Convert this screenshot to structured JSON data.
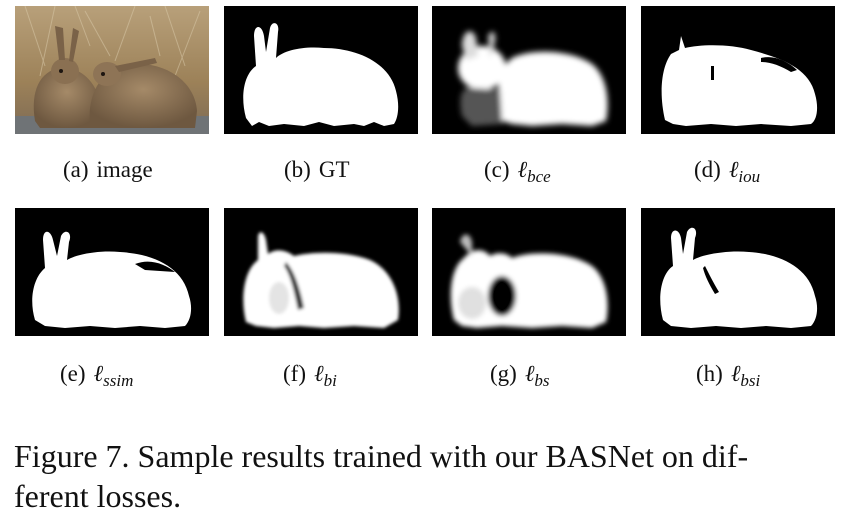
{
  "panels": [
    {
      "id": "a",
      "label": "(a)",
      "text": "image",
      "symbol": "",
      "subscript": ""
    },
    {
      "id": "b",
      "label": "(b)",
      "text": "GT",
      "symbol": "",
      "subscript": ""
    },
    {
      "id": "c",
      "label": "(c)",
      "text": "",
      "symbol": "ℓ",
      "subscript": "bce"
    },
    {
      "id": "d",
      "label": "(d)",
      "text": "",
      "symbol": "ℓ",
      "subscript": "iou"
    },
    {
      "id": "e",
      "label": "(e)",
      "text": "",
      "symbol": "ℓ",
      "subscript": "ssim"
    },
    {
      "id": "f",
      "label": "(f)",
      "text": "",
      "symbol": "ℓ",
      "subscript": "bi"
    },
    {
      "id": "g",
      "label": "(g)",
      "text": "",
      "symbol": "ℓ",
      "subscript": "bs"
    },
    {
      "id": "h",
      "label": "(h)",
      "text": "",
      "symbol": "ℓ",
      "subscript": "bsi"
    }
  ],
  "caption": {
    "line1": "Figure 7.  Sample results trained with our BASNet on dif-",
    "line2": "ferent losses."
  }
}
